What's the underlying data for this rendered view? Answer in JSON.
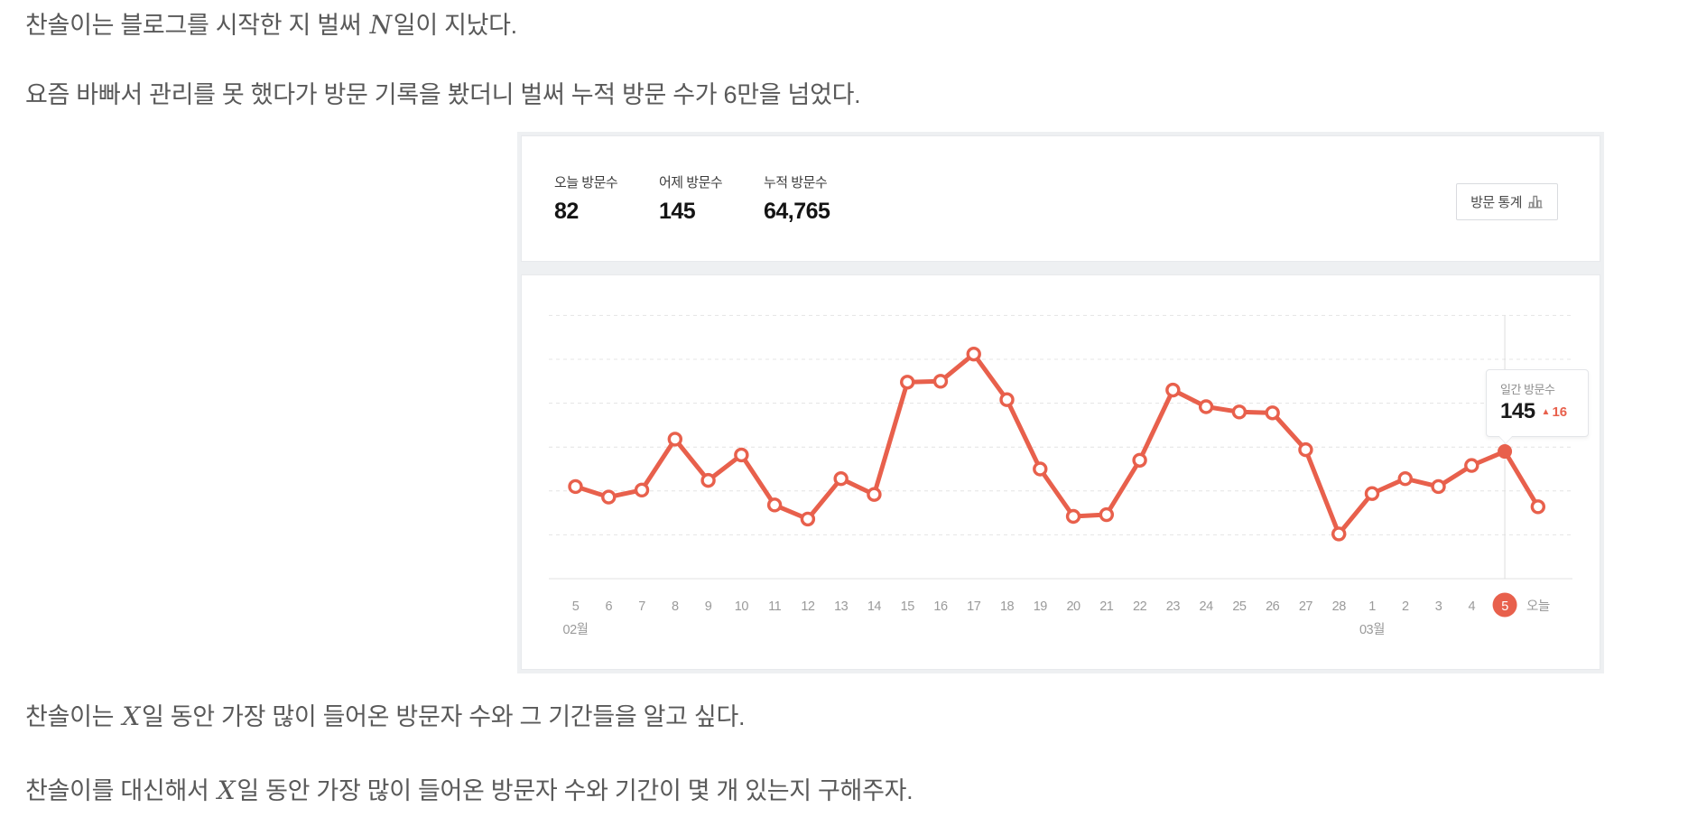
{
  "paragraphs": {
    "p1": {
      "before": "찬솔이는 블로그를 시작한 지 벌써 ",
      "math": "N",
      "after": "일이 지났다."
    },
    "p2": {
      "text": "요즘 바빠서 관리를 못 했다가 방문 기록을 봤더니 벌써 누적 방문 수가 6만을 넘었다."
    },
    "p3": {
      "before": "찬솔이는 ",
      "math": "X",
      "after": "일 동안 가장 많이 들어온 방문자 수와 그 기간들을 알고 싶다."
    },
    "p4": {
      "before": "찬솔이를 대신해서 ",
      "math": "X",
      "after": "일 동안 가장 많이 들어온 방문자 수와 기간이 몇 개 있는지 구해주자."
    }
  },
  "widget": {
    "stats": [
      {
        "label": "오늘 방문수",
        "value": "82"
      },
      {
        "label": "어제 방문수",
        "value": "145"
      },
      {
        "label": "누적 방문수",
        "value": "64,765"
      }
    ],
    "stats_button": {
      "label": "방문 통계",
      "icon": "bar-chart-icon"
    },
    "tooltip": {
      "label": "일간 방문수",
      "value": "145",
      "delta": "16",
      "delta_direction": "up"
    }
  },
  "chart_data": {
    "type": "line",
    "x_labels": [
      "5",
      "6",
      "7",
      "8",
      "9",
      "10",
      "11",
      "12",
      "13",
      "14",
      "15",
      "16",
      "17",
      "18",
      "19",
      "20",
      "21",
      "22",
      "23",
      "24",
      "25",
      "26",
      "27",
      "28",
      "1",
      "2",
      "3",
      "4",
      "5",
      "오늘"
    ],
    "values": [
      105,
      93,
      101,
      159,
      112,
      141,
      84,
      68,
      114,
      96,
      224,
      225,
      256,
      204,
      125,
      71,
      73,
      135,
      215,
      196,
      190,
      189,
      147,
      51,
      97,
      114,
      105,
      129,
      145,
      82
    ],
    "months": [
      {
        "index": 0,
        "label": "02월"
      },
      {
        "index": 24,
        "label": "03월"
      }
    ],
    "selected_index": 28,
    "today_index": 29,
    "ylim": [
      0,
      300
    ],
    "grid_step": 50,
    "grid": true,
    "legend": false,
    "line_color": "#e8604c"
  },
  "colors": {
    "accent": "#e8604c",
    "axis_text": "#9a9a9a",
    "gridline": "#e4e4e4",
    "baseline": "#e2e2e2",
    "guide_line": "#dedede",
    "card_border": "#e7e9ec",
    "widget_bg": "#eef0f2"
  }
}
